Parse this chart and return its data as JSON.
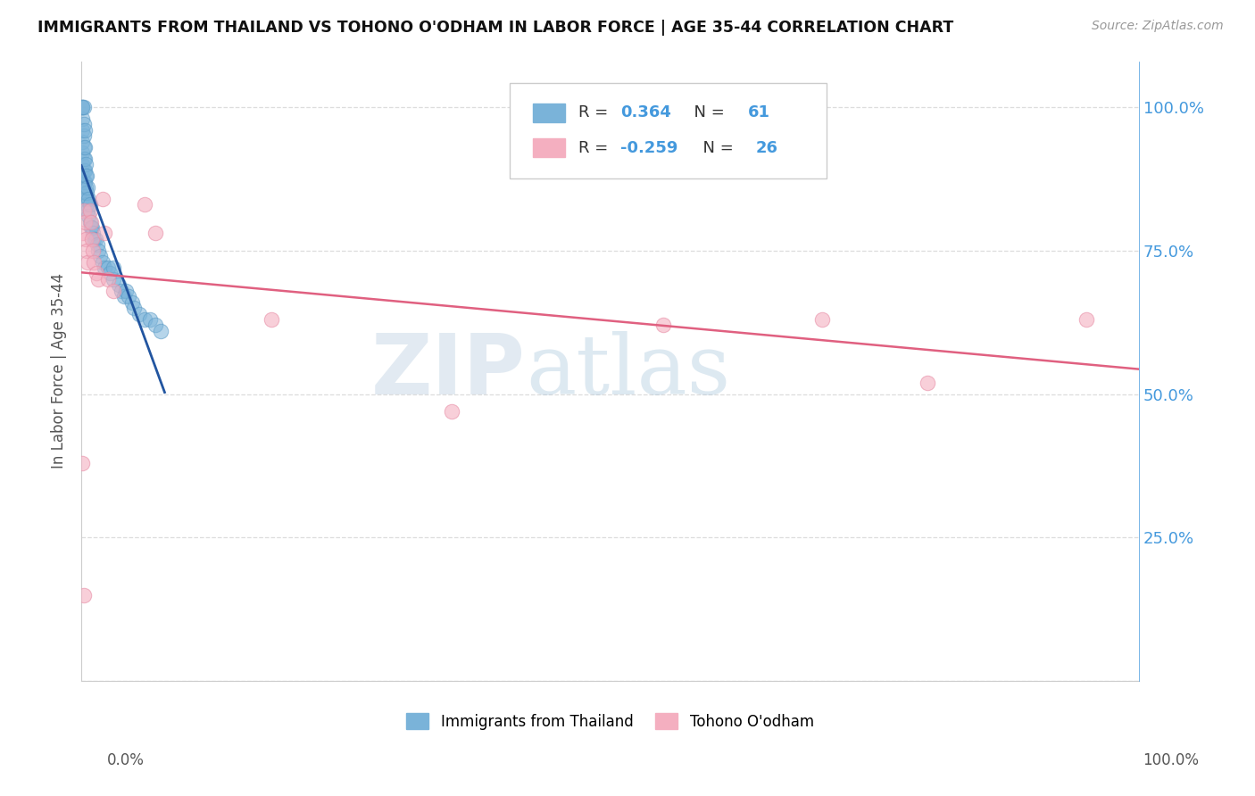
{
  "title": "IMMIGRANTS FROM THAILAND VS TOHONO O'ODHAM IN LABOR FORCE | AGE 35-44 CORRELATION CHART",
  "source": "Source: ZipAtlas.com",
  "ylabel": "In Labor Force | Age 35-44",
  "legend_label_blue": "Immigrants from Thailand",
  "legend_label_pink": "Tohono O'odham",
  "blue_color": "#7ab3d9",
  "blue_edge_color": "#5a9ac5",
  "pink_color": "#f4afc0",
  "pink_edge_color": "#e890a8",
  "blue_line_color": "#2255a0",
  "pink_line_color": "#e06080",
  "right_axis_color": "#4499dd",
  "grid_color": "#dddddd",
  "title_color": "#111111",
  "background_color": "#ffffff",
  "watermark_color": "#ccdded",
  "blue_r": 0.364,
  "blue_n": 61,
  "pink_r": -0.259,
  "pink_n": 26,
  "blue_x": [
    0.001,
    0.001,
    0.001,
    0.001,
    0.001,
    0.001,
    0.001,
    0.001,
    0.001,
    0.002,
    0.002,
    0.002,
    0.002,
    0.002,
    0.002,
    0.002,
    0.003,
    0.003,
    0.003,
    0.003,
    0.003,
    0.003,
    0.004,
    0.004,
    0.004,
    0.004,
    0.005,
    0.005,
    0.005,
    0.006,
    0.006,
    0.007,
    0.007,
    0.008,
    0.008,
    0.009,
    0.01,
    0.011,
    0.012,
    0.013,
    0.015,
    0.016,
    0.018,
    0.02,
    0.022,
    0.025,
    0.027,
    0.03,
    0.03,
    0.035,
    0.038,
    0.04,
    0.042,
    0.045,
    0.048,
    0.05,
    0.055,
    0.06,
    0.065,
    0.07,
    0.075
  ],
  "blue_y": [
    0.88,
    0.9,
    0.92,
    0.94,
    0.96,
    0.98,
    1.0,
    1.0,
    1.0,
    0.87,
    0.89,
    0.91,
    0.93,
    0.95,
    0.97,
    1.0,
    0.85,
    0.87,
    0.89,
    0.91,
    0.93,
    0.96,
    0.84,
    0.86,
    0.88,
    0.9,
    0.83,
    0.85,
    0.88,
    0.82,
    0.86,
    0.81,
    0.84,
    0.8,
    0.83,
    0.79,
    0.79,
    0.78,
    0.77,
    0.77,
    0.76,
    0.75,
    0.74,
    0.73,
    0.72,
    0.72,
    0.71,
    0.7,
    0.72,
    0.69,
    0.68,
    0.67,
    0.68,
    0.67,
    0.66,
    0.65,
    0.64,
    0.63,
    0.63,
    0.62,
    0.61
  ],
  "pink_x": [
    0.001,
    0.001,
    0.002,
    0.003,
    0.004,
    0.005,
    0.006,
    0.008,
    0.009,
    0.01,
    0.011,
    0.012,
    0.014,
    0.016,
    0.02,
    0.022,
    0.025,
    0.03,
    0.06,
    0.07,
    0.18,
    0.35,
    0.55,
    0.7,
    0.8,
    0.95
  ],
  "pink_y": [
    0.38,
    0.78,
    0.82,
    0.8,
    0.77,
    0.75,
    0.73,
    0.82,
    0.8,
    0.77,
    0.75,
    0.73,
    0.71,
    0.7,
    0.84,
    0.78,
    0.7,
    0.68,
    0.83,
    0.78,
    0.63,
    0.47,
    0.62,
    0.63,
    0.52,
    0.63
  ],
  "pink_low_x": [
    0.002
  ],
  "pink_low_y": [
    0.15
  ],
  "xlim": [
    0.0,
    1.0
  ],
  "ylim": [
    0.0,
    1.08
  ],
  "xticks": [
    0.0,
    0.1,
    0.2,
    0.3,
    0.4,
    0.5,
    0.6,
    0.7,
    0.8,
    0.9,
    1.0
  ],
  "yticks": [
    0.0,
    0.25,
    0.5,
    0.75,
    1.0
  ],
  "ytick_labels_right": [
    "",
    "25.0%",
    "50.0%",
    "75.0%",
    "100.0%"
  ]
}
